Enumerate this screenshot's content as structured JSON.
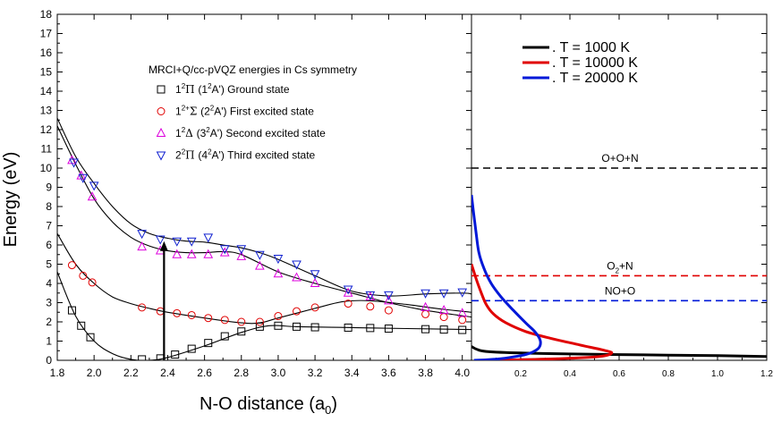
{
  "chart_data": [
    {
      "panel": "left",
      "type": "scatter",
      "title": "",
      "xlabel": "N-O distance (a",
      "xlabel_subscript": "0",
      "xlabel_suffix": ")",
      "ylabel": "Energy (eV)",
      "xlim": [
        1.8,
        4.05
      ],
      "ylim": [
        0,
        18
      ],
      "xticks": [
        "1.8",
        "2.0",
        "2.2",
        "2.4",
        "2.6",
        "2.8",
        "3.0",
        "3.2",
        "3.4",
        "3.6",
        "3.8",
        "4.0"
      ],
      "yticks": [
        "0",
        "1",
        "2",
        "3",
        "4",
        "5",
        "6",
        "7",
        "8",
        "9",
        "10",
        "11",
        "12",
        "13",
        "14",
        "15",
        "16",
        "17",
        "18"
      ],
      "grid": false,
      "legend_title": "MRCI+Q/cc-pVQZ energies in Cs symmetry",
      "legend_position": "upper-middle",
      "series": [
        {
          "legend_state": "1",
          "legend_term": "Π",
          "legend_sym": "(1",
          "legend_rest": "A') Ground state",
          "sup1": "2",
          "sup2": "2",
          "marker": "square",
          "color": "#000000",
          "x": [
            1.88,
            1.93,
            1.98,
            2.26,
            2.36,
            2.44,
            2.53,
            2.62,
            2.71,
            2.8,
            2.9,
            3.0,
            3.1,
            3.2,
            3.38,
            3.5,
            3.6,
            3.8,
            3.9,
            4.0
          ],
          "y": [
            2.6,
            1.8,
            1.2,
            0.05,
            0.1,
            0.3,
            0.6,
            0.9,
            1.25,
            1.5,
            1.75,
            1.8,
            1.75,
            1.72,
            1.7,
            1.68,
            1.65,
            1.62,
            1.6,
            1.58
          ],
          "fit_x": [
            1.8,
            1.9,
            2.0,
            2.1,
            2.2,
            2.3,
            2.4,
            2.6,
            2.8,
            2.95,
            3.1,
            3.4,
            3.7,
            4.05
          ],
          "fit_y": [
            4.6,
            2.3,
            1.0,
            0.35,
            0.05,
            0.0,
            0.15,
            0.75,
            1.45,
            1.8,
            1.75,
            1.7,
            1.65,
            1.6
          ]
        },
        {
          "legend_state": "1",
          "legend_term": "Σ",
          "legend_sym": "(2",
          "legend_rest": "A') First excited state",
          "sup1": "2",
          "sup1b": "+",
          "sup2": "2",
          "marker": "circle",
          "color": "#e00000",
          "x": [
            1.88,
            1.94,
            1.99,
            2.26,
            2.36,
            2.45,
            2.53,
            2.62,
            2.71,
            2.8,
            2.9,
            3.0,
            3.1,
            3.2,
            3.38,
            3.5,
            3.6,
            3.8,
            3.9,
            4.0
          ],
          "y": [
            4.95,
            4.4,
            4.05,
            2.75,
            2.55,
            2.45,
            2.35,
            2.2,
            2.1,
            2.0,
            2.0,
            2.3,
            2.55,
            2.75,
            2.95,
            2.8,
            2.6,
            2.4,
            2.25,
            2.1
          ],
          "fit_x": [
            1.8,
            1.9,
            2.0,
            2.1,
            2.2,
            2.3,
            2.4,
            2.6,
            2.8,
            2.9,
            3.0,
            3.2,
            3.35,
            3.5,
            3.7,
            3.9,
            4.05
          ],
          "fit_y": [
            6.6,
            5.0,
            4.0,
            3.3,
            2.95,
            2.7,
            2.5,
            2.2,
            1.95,
            1.95,
            2.2,
            2.7,
            3.05,
            3.1,
            2.9,
            2.65,
            2.5
          ]
        },
        {
          "legend_state": "1",
          "legend_term": "Δ",
          "legend_sym": "(3",
          "legend_rest": "A') Second excited state",
          "sup1": "2",
          "sup2": "2",
          "marker": "triangle-up",
          "color": "#dd00dd",
          "x": [
            1.88,
            1.93,
            1.99,
            2.26,
            2.36,
            2.45,
            2.53,
            2.62,
            2.71,
            2.8,
            2.9,
            3.0,
            3.1,
            3.2,
            3.38,
            3.5,
            3.6,
            3.8,
            3.9,
            4.0
          ],
          "y": [
            10.4,
            9.6,
            8.5,
            5.9,
            5.7,
            5.5,
            5.5,
            5.5,
            5.6,
            5.4,
            4.9,
            4.5,
            4.3,
            4.0,
            3.5,
            3.3,
            3.1,
            2.75,
            2.6,
            2.45
          ],
          "fit_x": [
            1.8,
            1.9,
            2.0,
            2.1,
            2.2,
            2.3,
            2.4,
            2.5,
            2.6,
            2.7,
            2.8,
            3.0,
            3.2,
            3.4,
            3.6,
            3.8,
            4.05
          ],
          "fit_y": [
            12.2,
            10.2,
            8.4,
            7.2,
            6.4,
            5.95,
            5.7,
            5.6,
            5.6,
            5.65,
            5.5,
            4.6,
            4.0,
            3.5,
            3.0,
            2.6,
            2.25
          ]
        },
        {
          "legend_state": "2",
          "legend_term": "Π",
          "legend_sym": "(4",
          "legend_rest": "A') Third excited state",
          "sup1": "2",
          "sup2": "2",
          "marker": "triangle-down",
          "color": "#1020d0",
          "x": [
            1.89,
            1.94,
            2.0,
            2.26,
            2.36,
            2.45,
            2.53,
            2.62,
            2.71,
            2.8,
            2.9,
            3.0,
            3.1,
            3.2,
            3.38,
            3.5,
            3.6,
            3.8,
            3.9,
            4.0
          ],
          "y": [
            10.3,
            9.5,
            9.1,
            6.6,
            6.3,
            6.2,
            6.2,
            6.4,
            5.8,
            5.8,
            5.5,
            5.3,
            5.0,
            4.5,
            3.7,
            3.4,
            3.4,
            3.5,
            3.5,
            3.55
          ],
          "fit_x": [
            1.8,
            1.9,
            2.0,
            2.1,
            2.2,
            2.3,
            2.4,
            2.5,
            2.6,
            2.7,
            2.8,
            2.9,
            3.0,
            3.2,
            3.4,
            3.6,
            3.8,
            4.0,
            4.05
          ],
          "fit_y": [
            12.6,
            10.6,
            9.2,
            8.0,
            7.1,
            6.6,
            6.35,
            6.2,
            6.15,
            6.0,
            5.85,
            5.6,
            5.25,
            4.4,
            3.6,
            3.35,
            3.45,
            3.5,
            3.45
          ]
        }
      ],
      "arrow": {
        "x": 2.38,
        "y_from": 0.0,
        "y_to": 6.2
      }
    },
    {
      "panel": "right",
      "type": "line",
      "title": "",
      "xlim": [
        0.0,
        1.2
      ],
      "ylim": [
        0,
        18
      ],
      "xticks": [
        "0.2",
        "0.4",
        "0.6",
        "0.8",
        "1.0",
        "1.2"
      ],
      "grid": false,
      "legend_position": "top-right",
      "series": [
        {
          "name": "T =   1000 K",
          "color": "#000000",
          "prefix": ".",
          "x": [
            0.0,
            0.02,
            0.06,
            0.2,
            0.4,
            0.6,
            0.8,
            1.0,
            1.2
          ],
          "y": [
            0.72,
            0.58,
            0.46,
            0.38,
            0.33,
            0.3,
            0.27,
            0.24,
            0.2
          ]
        },
        {
          "name": "T = 10000 K",
          "color": "#e00000",
          "prefix": ".",
          "x": [
            0.0,
            0.02,
            0.04,
            0.06,
            0.09,
            0.14,
            0.22,
            0.32,
            0.44,
            0.53,
            0.57,
            0.52,
            0.35,
            0.15,
            0.02
          ],
          "y": [
            5.0,
            4.2,
            3.5,
            2.9,
            2.4,
            1.95,
            1.5,
            1.15,
            0.8,
            0.55,
            0.38,
            0.2,
            0.08,
            0.02,
            0.0
          ]
        },
        {
          "name": "T = 20000 K",
          "color": "#0018d8",
          "prefix": ".",
          "x": [
            0.0,
            0.01,
            0.02,
            0.03,
            0.05,
            0.08,
            0.12,
            0.17,
            0.22,
            0.26,
            0.28,
            0.27,
            0.22,
            0.13,
            0.05,
            0.01
          ],
          "y": [
            8.6,
            7.5,
            6.5,
            5.6,
            4.8,
            4.0,
            3.3,
            2.6,
            1.95,
            1.45,
            1.0,
            0.6,
            0.3,
            0.1,
            0.02,
            0.0
          ]
        }
      ],
      "thresholds": [
        {
          "label": "O+O+N",
          "y": 10.0,
          "color": "#000000"
        },
        {
          "label": "O",
          "label_sub": "2",
          "label_suffix": "+N",
          "y": 4.4,
          "color": "#e00000"
        },
        {
          "label": "NO+O",
          "y": 3.1,
          "color": "#0018d8"
        }
      ]
    }
  ]
}
